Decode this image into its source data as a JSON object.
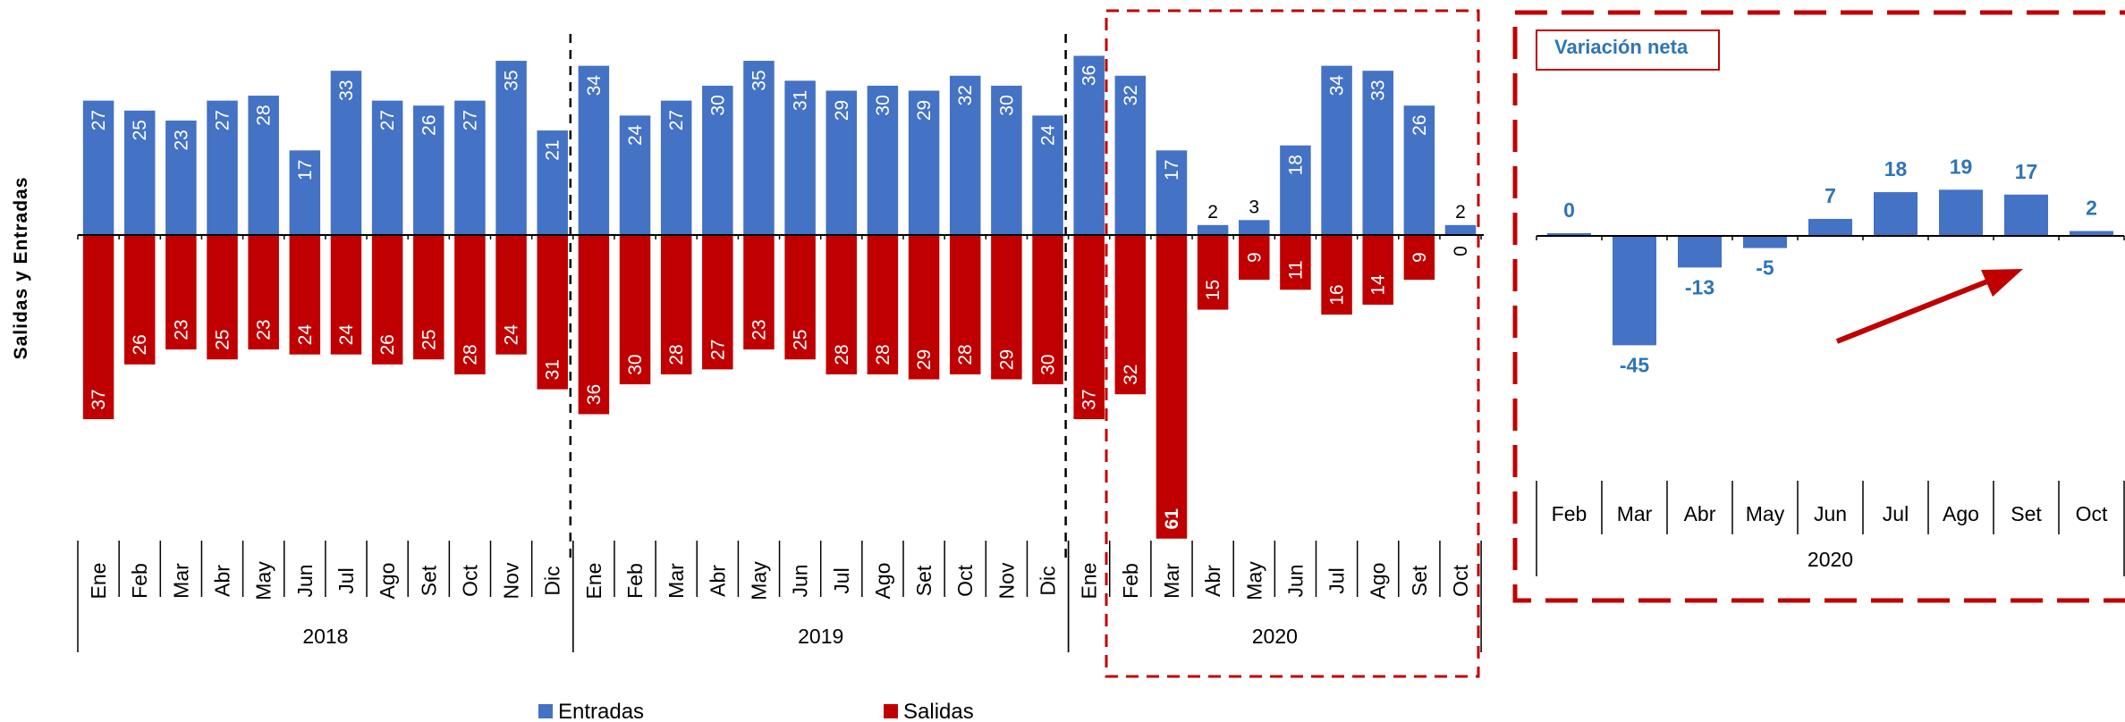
{
  "colors": {
    "entradas": "#4472c4",
    "salidas": "#c00000",
    "net_bar": "#4472c4",
    "net_label": "#2e75b6",
    "highlight": "#c00000"
  },
  "chart_data": [
    {
      "type": "bar",
      "ylabel": "Salidas  y  Entradas",
      "categories": [
        "Ene",
        "Feb",
        "Mar",
        "Abr",
        "May",
        "Jun",
        "Jul",
        "Ago",
        "Set",
        "Oct",
        "Nov",
        "Dic",
        "Ene",
        "Feb",
        "Mar",
        "Abr",
        "May",
        "Jun",
        "Jul",
        "Ago",
        "Set",
        "Oct",
        "Nov",
        "Dic",
        "Ene",
        "Feb",
        "Mar",
        "Abr",
        "May",
        "Jun",
        "Jul",
        "Ago",
        "Set",
        "Oct"
      ],
      "years": [
        {
          "label": "2018",
          "count": 12
        },
        {
          "label": "2019",
          "count": 12
        },
        {
          "label": "2020",
          "count": 10
        }
      ],
      "series": [
        {
          "name": "Entradas",
          "values": [
            27,
            25,
            23,
            27,
            28,
            17,
            33,
            27,
            26,
            27,
            35,
            21,
            34,
            24,
            27,
            30,
            35,
            31,
            29,
            30,
            29,
            32,
            30,
            24,
            36,
            32,
            17,
            2,
            3,
            18,
            34,
            33,
            26,
            2
          ]
        },
        {
          "name": "Salidas",
          "values": [
            -37,
            -26,
            -23,
            -25,
            -23,
            -24,
            -24,
            -26,
            -25,
            -28,
            -24,
            -31,
            -36,
            -30,
            -28,
            -27,
            -23,
            -25,
            -28,
            -28,
            -29,
            -28,
            -29,
            -30,
            -37,
            -32,
            -61,
            -15,
            -9,
            -11,
            -16,
            -14,
            -9,
            0
          ]
        }
      ],
      "entradas_labels": [
        "27",
        "25",
        "23",
        "27",
        "28",
        "17",
        "33",
        "27",
        "26",
        "27",
        "35",
        "21",
        "34",
        "24",
        "27",
        "30",
        "35",
        "31",
        "29",
        "30",
        "29",
        "32",
        "30",
        "24",
        "36",
        "32",
        "17",
        "2",
        "3",
        "18",
        "34",
        "33",
        "26",
        "2"
      ],
      "salidas_labels": [
        "37",
        "26",
        "23",
        "25",
        "23",
        "24",
        "24",
        "26",
        "25",
        "28",
        "24",
        "31",
        "36",
        "30",
        "28",
        "27",
        "23",
        "25",
        "28",
        "28",
        "29",
        "28",
        "29",
        "30",
        "37",
        "32",
        "61",
        "15",
        "9",
        "11",
        "16",
        "14",
        "9",
        "0"
      ],
      "legend": {
        "placement": "bottom",
        "entradas": "Entradas",
        "salidas": "Salidas"
      }
    },
    {
      "type": "bar",
      "title": "Variación neta",
      "categories": [
        "Feb",
        "Mar",
        "Abr",
        "May",
        "Jun",
        "Jul",
        "Ago",
        "Set",
        "Oct"
      ],
      "year": "2020",
      "values": [
        0,
        -45,
        -13,
        -5,
        7,
        18,
        19,
        17,
        2
      ],
      "value_labels": [
        "0",
        "-45",
        "-13",
        "-5",
        "7",
        "18",
        "19",
        "17",
        "2"
      ]
    }
  ]
}
